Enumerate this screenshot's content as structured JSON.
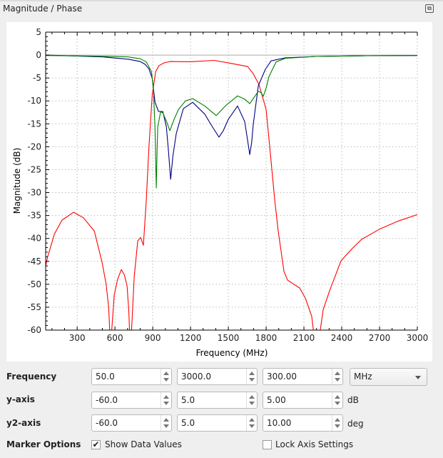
{
  "window": {
    "title": "Magnitude / Phase",
    "float_icon": "float-window-icon"
  },
  "chart_data": {
    "type": "line",
    "title": "",
    "xlabel": "Frequency (MHz)",
    "ylabel": "Magnitude (dB)",
    "xlim": [
      50,
      3000
    ],
    "ylim": [
      -60,
      5
    ],
    "xticks": [
      300,
      600,
      900,
      1200,
      1500,
      1800,
      2100,
      2400,
      2700,
      3000
    ],
    "yticks": [
      5,
      0,
      -5,
      -10,
      -15,
      -20,
      -25,
      -30,
      -35,
      -40,
      -45,
      -50,
      -55,
      -60
    ],
    "grid": true,
    "legend": "none",
    "series": [
      {
        "color": "#ff0000",
        "points": [
          [
            50,
            -46
          ],
          [
            66,
            -44
          ],
          [
            120,
            -39
          ],
          [
            180,
            -36
          ],
          [
            272,
            -34.3
          ],
          [
            350,
            -35.5
          ],
          [
            436,
            -38.4
          ],
          [
            498,
            -45.2
          ],
          [
            530,
            -50
          ],
          [
            550,
            -55
          ],
          [
            560,
            -61
          ],
          [
            572,
            -61
          ],
          [
            594,
            -52.4
          ],
          [
            620,
            -49
          ],
          [
            651,
            -46.8
          ],
          [
            675,
            -48
          ],
          [
            696,
            -50.3
          ],
          [
            710,
            -56
          ],
          [
            717,
            -61
          ],
          [
            730,
            -61
          ],
          [
            753,
            -48.3
          ],
          [
            781,
            -40.5
          ],
          [
            804,
            -39.8
          ],
          [
            826,
            -41.5
          ],
          [
            849,
            -31.6
          ],
          [
            870,
            -20
          ],
          [
            896,
            -8.7
          ],
          [
            923,
            -3.6
          ],
          [
            950,
            -2.3
          ],
          [
            990,
            -1.7
          ],
          [
            1036,
            -1.4
          ],
          [
            1200,
            -1.45
          ],
          [
            1387,
            -1.15
          ],
          [
            1517,
            -1.8
          ],
          [
            1653,
            -2.5
          ],
          [
            1698,
            -4.1
          ],
          [
            1743,
            -6.4
          ],
          [
            1800,
            -11.9
          ],
          [
            1840,
            -23.3
          ],
          [
            1868,
            -31.6
          ],
          [
            1896,
            -38.4
          ],
          [
            1942,
            -47.2
          ],
          [
            1970,
            -49.1
          ],
          [
            2066,
            -50.8
          ],
          [
            2111,
            -53
          ],
          [
            2162,
            -57
          ],
          [
            2179,
            -61
          ],
          [
            2224,
            -61
          ],
          [
            2253,
            -55.5
          ],
          [
            2304,
            -51.4
          ],
          [
            2394,
            -44.9
          ],
          [
            2480,
            -42.3
          ],
          [
            2558,
            -40.2
          ],
          [
            2706,
            -37.9
          ],
          [
            2850,
            -36.2
          ],
          [
            2989,
            -34.9
          ],
          [
            3000,
            -34.8
          ]
        ]
      },
      {
        "color": "#000080",
        "points": [
          [
            50,
            0
          ],
          [
            300,
            -0.2
          ],
          [
            500,
            -0.4
          ],
          [
            707,
            -0.9
          ],
          [
            800,
            -1.4
          ],
          [
            838,
            -2
          ],
          [
            870,
            -3
          ],
          [
            896,
            -5.1
          ],
          [
            918,
            -10.3
          ],
          [
            946,
            -12.3
          ],
          [
            980,
            -12.3
          ],
          [
            1008,
            -15.6
          ],
          [
            1025,
            -21
          ],
          [
            1042,
            -27.1
          ],
          [
            1060,
            -22
          ],
          [
            1087,
            -17.1
          ],
          [
            1143,
            -11.7
          ],
          [
            1217,
            -10.3
          ],
          [
            1313,
            -12.9
          ],
          [
            1370,
            -15.5
          ],
          [
            1426,
            -17.9
          ],
          [
            1460,
            -16.5
          ],
          [
            1500,
            -14
          ],
          [
            1573,
            -11.1
          ],
          [
            1630,
            -14.5
          ],
          [
            1655,
            -19
          ],
          [
            1670,
            -21.7
          ],
          [
            1685,
            -19
          ],
          [
            1698,
            -15
          ],
          [
            1738,
            -6.7
          ],
          [
            1794,
            -3.1
          ],
          [
            1840,
            -1.25
          ],
          [
            1953,
            -0.6
          ],
          [
            2200,
            -0.3
          ],
          [
            2600,
            -0.15
          ],
          [
            3000,
            -0.1
          ]
        ]
      },
      {
        "color": "#008000",
        "points": [
          [
            50,
            -0.1
          ],
          [
            400,
            -0.2
          ],
          [
            700,
            -0.4
          ],
          [
            800,
            -0.8
          ],
          [
            849,
            -1.5
          ],
          [
            890,
            -3.6
          ],
          [
            906,
            -7.8
          ],
          [
            918,
            -16
          ],
          [
            928,
            -29
          ],
          [
            935,
            -20
          ],
          [
            940,
            -15.6
          ],
          [
            962,
            -12.4
          ],
          [
            980,
            -12.6
          ],
          [
            1010,
            -14.5
          ],
          [
            1036,
            -16.5
          ],
          [
            1070,
            -14
          ],
          [
            1104,
            -11.9
          ],
          [
            1160,
            -10
          ],
          [
            1217,
            -9.5
          ],
          [
            1313,
            -11.1
          ],
          [
            1404,
            -13.2
          ],
          [
            1480,
            -11
          ],
          [
            1573,
            -8.9
          ],
          [
            1630,
            -9.6
          ],
          [
            1670,
            -10.6
          ],
          [
            1710,
            -9
          ],
          [
            1738,
            -7.9
          ],
          [
            1760,
            -8.2
          ],
          [
            1777,
            -9
          ],
          [
            1800,
            -7.2
          ],
          [
            1822,
            -4.7
          ],
          [
            1879,
            -1.5
          ],
          [
            1953,
            -0.7
          ],
          [
            2200,
            -0.3
          ],
          [
            2600,
            -0.15
          ],
          [
            3000,
            -0.1
          ]
        ]
      }
    ]
  },
  "controls": {
    "frequency": {
      "label": "Frequency",
      "start": "50.0",
      "stop": "3000.0",
      "step": "300.00",
      "unit": "MHz"
    },
    "y_axis": {
      "label": "y-axis",
      "min": "-60.0",
      "max": "5.0",
      "step": "5.00",
      "unit": "dB"
    },
    "y2_axis": {
      "label": "y2-axis",
      "min": "-60.0",
      "max": "5.0",
      "step": "10.00",
      "unit": "deg"
    },
    "marker_options": {
      "label": "Marker Options",
      "show_data_values": {
        "label": "Show Data Values",
        "checked": true
      },
      "lock_axis_settings": {
        "label": "Lock Axis Settings",
        "checked": false
      }
    }
  }
}
